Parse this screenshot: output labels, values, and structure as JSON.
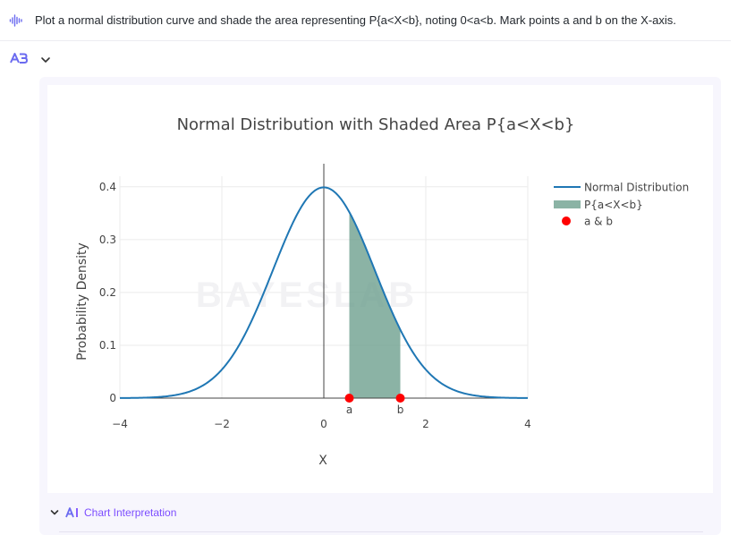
{
  "prompt": {
    "text": "Plot a normal distribution curve and shade the area representing P{a<X<b}, noting 0<a<b. Mark points a and b on the X-axis.",
    "icon": "voice-waveform-icon"
  },
  "agent": {
    "logo_icon": "agent-logo-icon",
    "expand_icon": "chevron-down-icon"
  },
  "chart": {
    "watermark": "BAYESLAB"
  },
  "interpretation": {
    "label": "Chart Interpretation"
  },
  "colors": {
    "curve": "#1f77b4",
    "shade": "#6a9e8c",
    "points": "#ff0000",
    "accent": "#7c4dff"
  },
  "chart_data": {
    "type": "line",
    "title": "Normal Distribution with Shaded Area P{a<X<b}",
    "xlabel": "X",
    "ylabel": "Probability Density",
    "xlim": [
      -4,
      4
    ],
    "ylim": [
      0,
      0.42
    ],
    "x_ticks": [
      -4,
      -2,
      0,
      2,
      4
    ],
    "x_tick_labels": [
      "−4",
      "−2",
      "0",
      "2",
      "4"
    ],
    "y_ticks": [
      0,
      0.1,
      0.2,
      0.3,
      0.4
    ],
    "y_tick_labels": [
      "0",
      "0.1",
      "0.2",
      "0.3",
      "0.4"
    ],
    "grid": true,
    "legend_position": "top-right",
    "curve": {
      "name": "Normal Distribution",
      "distribution": "standard normal",
      "mean": 0,
      "std": 1
    },
    "shaded_region": {
      "name": "P{a<X<b}",
      "from": 0.5,
      "to": 1.5
    },
    "points": {
      "name": "a & b",
      "x": [
        0.5,
        1.5
      ],
      "y": [
        0,
        0
      ],
      "labels": [
        "a",
        "b"
      ]
    }
  }
}
